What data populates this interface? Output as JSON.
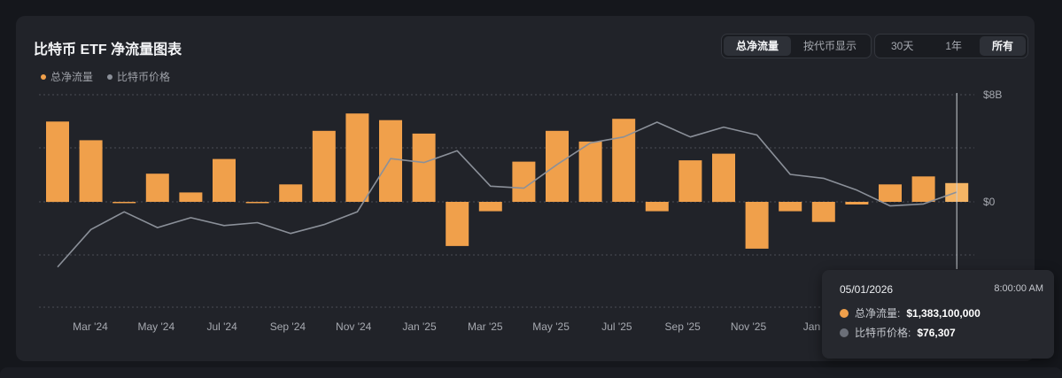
{
  "header": {
    "title": "比特币 ETF 净流量图表",
    "view_toggle": [
      {
        "label": "总净流量",
        "active": true
      },
      {
        "label": "按代币显示",
        "active": false
      }
    ],
    "range_toggle": [
      {
        "label": "30天",
        "active": false
      },
      {
        "label": "1年",
        "active": false
      },
      {
        "label": "所有",
        "active": true
      }
    ]
  },
  "legend": [
    {
      "label": "总净流量",
      "color": "#f0a04b"
    },
    {
      "label": "比特币价格",
      "color": "#8b9099"
    }
  ],
  "chart_data": {
    "type": "bar",
    "x_tick_labels": [
      "Mar '24",
      "May '24",
      "Jul '24",
      "Sep '24",
      "Nov '24",
      "Jan '25",
      "Mar '25",
      "May '25",
      "Jul '25",
      "Sep '25",
      "Nov '25",
      "Jan '"
    ],
    "y_tick_labels": [
      "$8B",
      "$0"
    ],
    "grid": true,
    "series": [
      {
        "name": "总净流量",
        "type": "bar",
        "color": "#f0a04b",
        "values": [
          6.0,
          4.6,
          -0.1,
          2.1,
          0.7,
          3.2,
          -0.1,
          1.3,
          5.3,
          6.6,
          6.1,
          5.1,
          -3.3,
          -0.7,
          3.0,
          5.3,
          4.5,
          6.2,
          -0.7,
          3.1,
          3.6,
          -3.5,
          -0.7,
          -1.5,
          -0.2,
          1.3,
          1.9,
          1.4
        ]
      },
      {
        "name": "比特币价格",
        "type": "line",
        "color": "#8b9099",
        "values": [
          42000,
          61000,
          70000,
          62000,
          67000,
          63000,
          64500,
          59000,
          63500,
          70000,
          97000,
          95000,
          101000,
          83000,
          82000,
          94000,
          105000,
          108000,
          115500,
          108000,
          113000,
          109000,
          89000,
          87000,
          81000,
          73000,
          74000,
          80000
        ]
      }
    ]
  },
  "tooltip": {
    "date": "05/01/2026",
    "time": "8:00:00 AM",
    "rows": [
      {
        "label": "总净流量:",
        "value": "$1,383,100,000",
        "color": "#f0a04b"
      },
      {
        "label": "比特币价格:",
        "value": "$76,307",
        "color": "#8b9099"
      }
    ]
  }
}
